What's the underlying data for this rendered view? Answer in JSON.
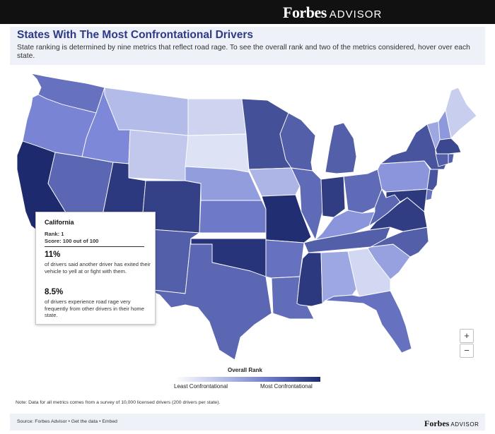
{
  "brand": {
    "name": "Forbes",
    "suffix": "ADVISOR"
  },
  "header": {
    "title": "States With The Most Confrontational Drivers",
    "subtitle": "State ranking is determined by nine metrics that reflect road rage. To see the overall rank and two of the metrics considered, hover over each state."
  },
  "tooltip": {
    "state": "California",
    "rank": "Rank: 1",
    "score": "Score: 100 out of 100",
    "metric1_value": "11%",
    "metric1_text": "of drivers said another driver has exited their vehicle to yell at or fight with them.",
    "metric2_value": "8.5%",
    "metric2_text": "of drivers experience road rage very frequently from other drivers in their home state."
  },
  "zoom": {
    "in_label": "+",
    "out_label": "−"
  },
  "legend": {
    "title": "Overall Rank",
    "min_label": "Least Confrontational",
    "max_label": "Most Confrontational",
    "colors": [
      "#ffffff",
      "#1e2a6e"
    ]
  },
  "note": "Note: Data for all metrics comes from a survey of 10,000 licensed drivers (200 drivers per state).",
  "footer": {
    "source_text": "Source: Forbes Advisor • Get the data • Embed"
  },
  "states": [
    {
      "id": "WA",
      "level": 0.62
    },
    {
      "id": "OR",
      "level": 0.52
    },
    {
      "id": "CA",
      "level": 1.0
    },
    {
      "id": "NV",
      "level": 0.68
    },
    {
      "id": "ID",
      "level": 0.5
    },
    {
      "id": "MT",
      "level": 0.25
    },
    {
      "id": "WY",
      "level": 0.18
    },
    {
      "id": "UT",
      "level": 0.92
    },
    {
      "id": "AZ",
      "level": 0.78
    },
    {
      "id": "CO",
      "level": 0.88
    },
    {
      "id": "NM",
      "level": 0.72
    },
    {
      "id": "ND",
      "level": 0.12
    },
    {
      "id": "SD",
      "level": 0.05
    },
    {
      "id": "NE",
      "level": 0.4
    },
    {
      "id": "KS",
      "level": 0.58
    },
    {
      "id": "OK",
      "level": 0.95
    },
    {
      "id": "TX",
      "level": 0.68
    },
    {
      "id": "MN",
      "level": 0.8
    },
    {
      "id": "IA",
      "level": 0.28
    },
    {
      "id": "MO",
      "level": 0.98
    },
    {
      "id": "AR",
      "level": 0.62
    },
    {
      "id": "LA",
      "level": 0.65
    },
    {
      "id": "WI",
      "level": 0.72
    },
    {
      "id": "IL",
      "level": 0.66
    },
    {
      "id": "MI",
      "level": 0.72
    },
    {
      "id": "IN",
      "level": 0.9
    },
    {
      "id": "OH",
      "level": 0.66
    },
    {
      "id": "KY",
      "level": 0.44
    },
    {
      "id": "TN",
      "level": 0.72
    },
    {
      "id": "MS",
      "level": 0.92
    },
    {
      "id": "AL",
      "level": 0.35
    },
    {
      "id": "GA",
      "level": 0.1
    },
    {
      "id": "FL",
      "level": 0.62
    },
    {
      "id": "SC",
      "level": 0.38
    },
    {
      "id": "NC",
      "level": 0.72
    },
    {
      "id": "VA",
      "level": 0.9
    },
    {
      "id": "WV",
      "level": 0.68
    },
    {
      "id": "PA",
      "level": 0.44
    },
    {
      "id": "NY",
      "level": 0.78
    },
    {
      "id": "VT",
      "level": 0.35
    },
    {
      "id": "NH",
      "level": 0.42
    },
    {
      "id": "ME",
      "level": 0.15
    },
    {
      "id": "MA",
      "level": 0.85
    },
    {
      "id": "CT",
      "level": 0.72
    },
    {
      "id": "RI",
      "level": 0.72
    },
    {
      "id": "NJ",
      "level": 0.78
    },
    {
      "id": "DE",
      "level": 0.62
    },
    {
      "id": "MD",
      "level": 0.92
    }
  ]
}
